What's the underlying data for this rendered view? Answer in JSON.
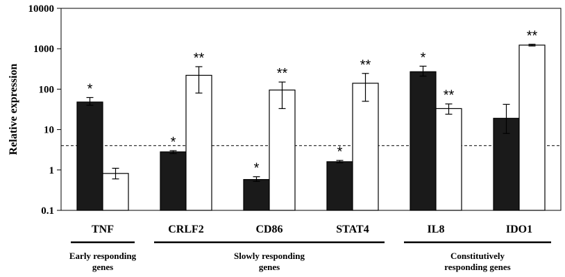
{
  "chart_data": {
    "type": "bar",
    "scale": "log",
    "ylabel": "Relative expression",
    "ylim": [
      0.1,
      10000
    ],
    "yticks": [
      "0.1",
      "1",
      "10",
      "100",
      "1000",
      "10000"
    ],
    "threshold": 4,
    "categories": [
      "TNF",
      "CRLF2",
      "CD86",
      "STAT4",
      "IL8",
      "IDO1"
    ],
    "series": [
      {
        "fill": "#1a1a1a",
        "values": [
          48,
          2.8,
          0.58,
          1.6,
          270,
          19
        ],
        "err_low": [
          40,
          2.55,
          0.52,
          1.5,
          210,
          8
        ],
        "err_high": [
          62,
          3.0,
          0.68,
          1.72,
          370,
          42
        ],
        "significance": [
          "*",
          "*",
          "*",
          "*",
          "*",
          ""
        ]
      },
      {
        "fill": "#ffffff",
        "values": [
          0.82,
          220,
          95,
          140,
          33,
          1230
        ],
        "err_low": [
          0.6,
          80,
          33,
          50,
          24,
          1170
        ],
        "err_high": [
          1.1,
          360,
          150,
          245,
          43,
          1290
        ],
        "significance": [
          "",
          "**",
          "**",
          "**",
          "**",
          "**"
        ]
      }
    ],
    "groups": [
      {
        "label_lines": [
          "Early responding",
          "genes"
        ],
        "categories": [
          "TNF"
        ]
      },
      {
        "label_lines": [
          "Slowly responding",
          "genes"
        ],
        "categories": [
          "CRLF2",
          "CD86",
          "STAT4"
        ]
      },
      {
        "label_lines": [
          "Constitutively",
          "responding genes"
        ],
        "categories": [
          "IL8",
          "IDO1"
        ]
      }
    ]
  }
}
